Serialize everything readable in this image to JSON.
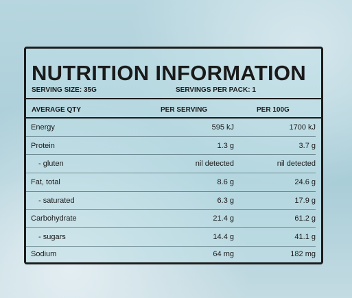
{
  "header": {
    "title": "NUTRITION INFORMATION",
    "serving_size": "SERVING SIZE: 35G",
    "servings_per_pack": "SERVINGS PER PACK: 1"
  },
  "table": {
    "columns": [
      "AVERAGE QTY",
      "PER SERVING",
      "PER 100G"
    ],
    "rows": [
      [
        "Energy",
        "595 kJ",
        "1700 kJ"
      ],
      [
        "Protein",
        "1.3 g",
        "3.7 g"
      ],
      [
        "- gluten",
        "nil detected",
        "nil detected"
      ],
      [
        "Fat, total",
        "8.6 g",
        "24.6 g"
      ],
      [
        "- saturated",
        "6.3 g",
        "17.9 g"
      ],
      [
        "Carbohydrate",
        "21.4 g",
        "61.2 g"
      ],
      [
        "- sugars",
        "14.4 g",
        "41.1 g"
      ],
      [
        "Sodium",
        "64 mg",
        "182 mg"
      ]
    ]
  }
}
